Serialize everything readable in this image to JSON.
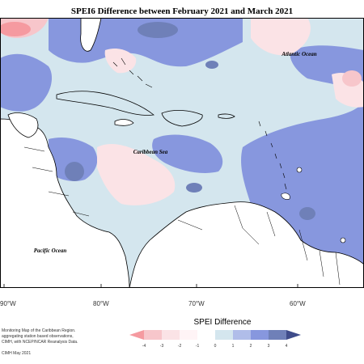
{
  "title": "SPEI6 Difference between February 2021 and March 2021",
  "labels": {
    "atlantic": "Atlantic Ocean",
    "caribbean": "Caribbean Sea",
    "pacific": "Pacific Ocean"
  },
  "longitudes": [
    "90°W",
    "80°W",
    "70°W",
    "60°W"
  ],
  "credits": {
    "line1": "Monitoring Map of the Caribbean Region.",
    "line2": "aggregating station based observations,",
    "line3": "CIMH, with NCEP/NCAR Reanalysis Data.",
    "line4": "CIMH May 2021"
  },
  "legend": {
    "title": "SPEI Difference",
    "ticks": [
      "-4",
      "-3",
      "-2",
      "-1",
      "0",
      "1",
      "2",
      "3",
      "4"
    ],
    "colors": [
      "#f59aa0",
      "#f7c6cb",
      "#fbe3e6",
      "#fff4f6",
      "#d4e6ee",
      "#b0bde9",
      "#8797de",
      "#6f80b8",
      "#3f4c8a"
    ]
  },
  "palette": {
    "pink_strong": "#f59aa0",
    "pink_light": "#fbe3e6",
    "light_blue": "#d4e6ee",
    "blue": "#8797de",
    "dark_blue_grey": "#6f80b8"
  }
}
